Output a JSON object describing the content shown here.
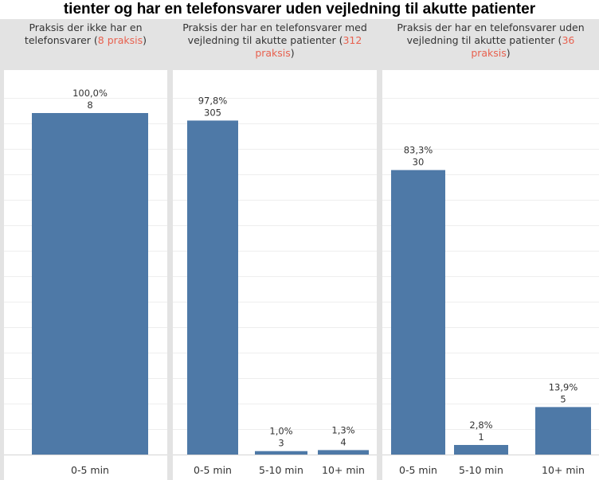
{
  "page": {
    "title_fragment": "tienter og har en telefonsvarer uden vejledning til akutte patienter"
  },
  "colors": {
    "bar": "#4e79a7",
    "highlight": "#e8614f",
    "header_bg": "#e3e3e3",
    "grid": "#eeeeee"
  },
  "chart_data": [
    {
      "type": "bar",
      "header_prefix": "Praksis der ikke har en telefonsvarer (",
      "header_count": "8 praksis",
      "header_suffix": ")",
      "categories": [
        "0-5 min"
      ],
      "values": [
        8
      ],
      "percents": [
        "100,0%"
      ],
      "share": [
        100.0
      ],
      "value_labels": [
        "8"
      ]
    },
    {
      "type": "bar",
      "header_prefix": "Praksis der har en telefonsvarer med vejledning til akutte patienter (",
      "header_count": "312 praksis",
      "header_suffix": ")",
      "categories": [
        "0-5 min",
        "5-10 min",
        "10+ min"
      ],
      "values": [
        305,
        3,
        4
      ],
      "percents": [
        "97,8%",
        "1,0%",
        "1,3%"
      ],
      "share": [
        97.8,
        1.0,
        1.3
      ],
      "value_labels": [
        "305",
        "3",
        "4"
      ]
    },
    {
      "type": "bar",
      "header_prefix": "Praksis der har en telefonsvarer uden vejledning til akutte patienter (",
      "header_count": "36 praksis",
      "header_suffix": ")",
      "categories": [
        "0-5 min",
        "5-10 min",
        "10+ min"
      ],
      "values": [
        30,
        1,
        5
      ],
      "percents": [
        "83,3%",
        "2,8%",
        "13,9%"
      ],
      "share": [
        83.3,
        2.8,
        13.9
      ],
      "value_labels": [
        "30",
        "1",
        "5"
      ]
    }
  ]
}
